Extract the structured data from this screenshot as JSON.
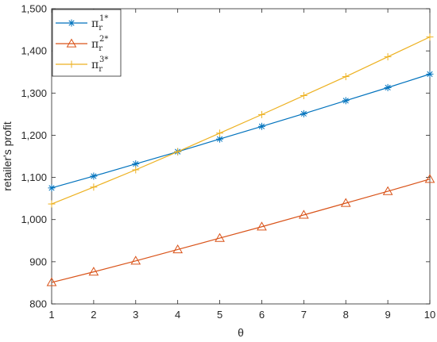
{
  "chart_data": {
    "type": "line",
    "title": "",
    "xlabel": "θ",
    "ylabel": "retailer's profit",
    "xlim": [
      1,
      10
    ],
    "ylim": [
      800,
      1500
    ],
    "x": [
      1,
      2,
      3,
      4,
      5,
      6,
      7,
      8,
      9,
      10
    ],
    "x_tick_labels": [
      "1",
      "2",
      "3",
      "4",
      "5",
      "6",
      "7",
      "8",
      "9",
      "10"
    ],
    "y_ticks": [
      800,
      900,
      1000,
      1100,
      1200,
      1300,
      1400,
      1500
    ],
    "y_tick_labels": [
      "800",
      "900",
      "1,000",
      "1,100",
      "1,200",
      "1,300",
      "1,400",
      "1,500"
    ],
    "grid": false,
    "legend_position": "top-left",
    "series": [
      {
        "name": "π_r^{1*}",
        "legend_base": "π",
        "legend_sub": "r",
        "legend_sup": "1*",
        "marker": "asterisk",
        "color": "#0072BD",
        "values": [
          1075,
          1103,
          1132,
          1161,
          1191,
          1221,
          1251,
          1282,
          1313,
          1345
        ]
      },
      {
        "name": "π_r^{2*}",
        "legend_base": "π",
        "legend_sub": "r",
        "legend_sup": "2*",
        "marker": "triangle",
        "color": "#D95319",
        "values": [
          851,
          876,
          902,
          929,
          956,
          983,
          1011,
          1039,
          1067,
          1096
        ]
      },
      {
        "name": "π_r^{3*}",
        "legend_base": "π",
        "legend_sub": "r",
        "legend_sup": "3*",
        "marker": "plus",
        "color": "#EDB120",
        "values": [
          1037,
          1077,
          1118,
          1161,
          1205,
          1249,
          1294,
          1339,
          1386,
          1433
        ]
      }
    ]
  }
}
